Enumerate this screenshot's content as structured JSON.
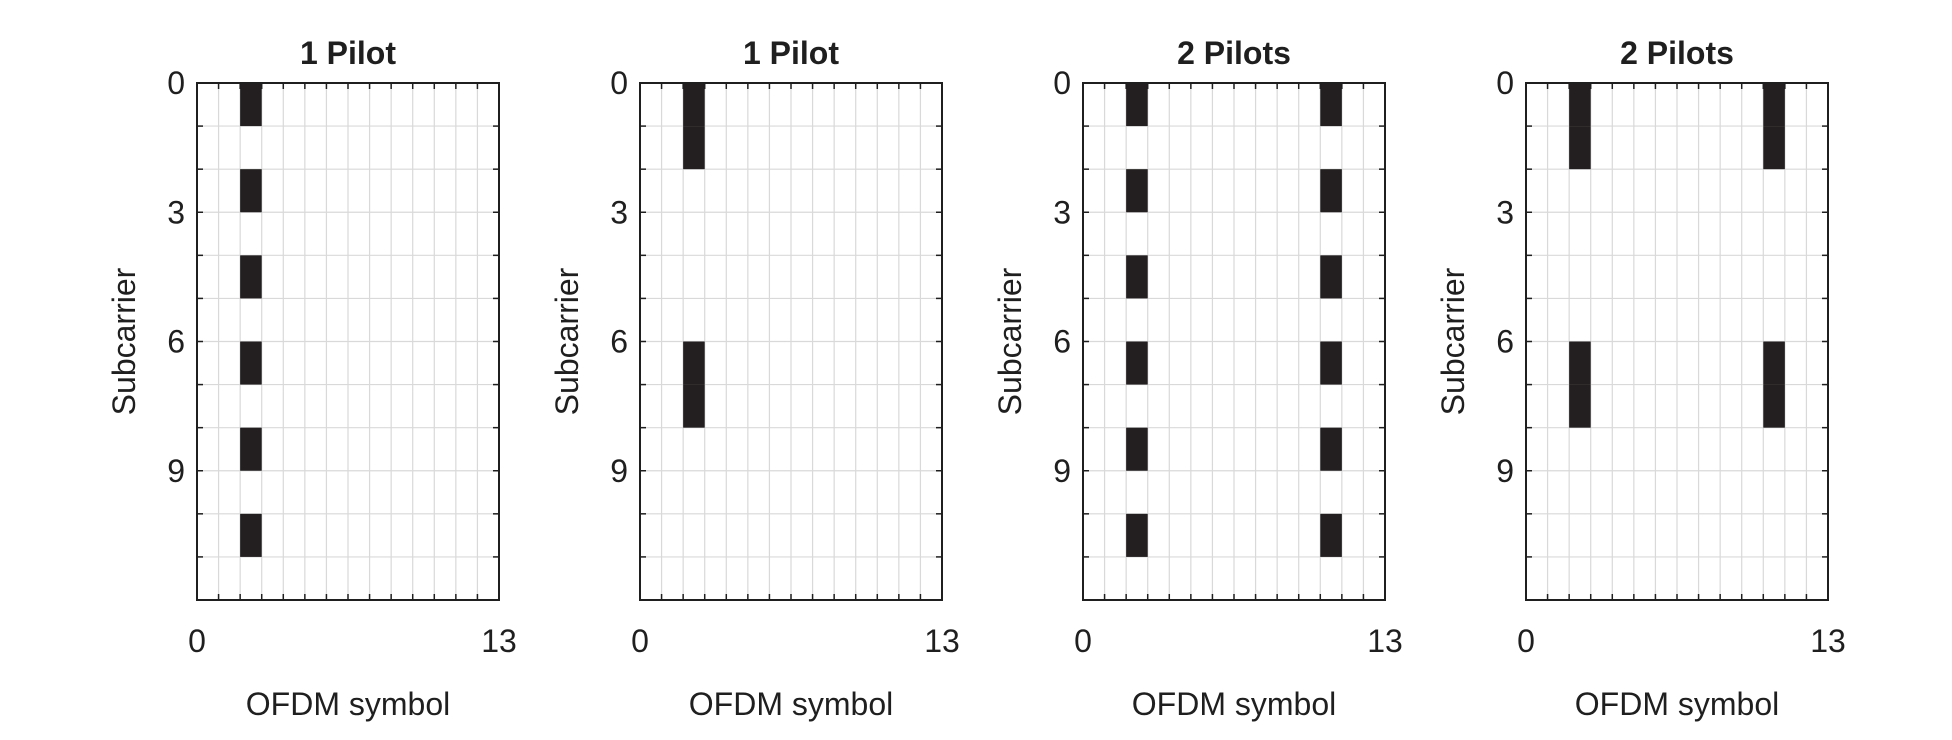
{
  "colors": {
    "pilot": "#231f20",
    "grid": "#d9d9d9",
    "axis": "#1f1f1f",
    "background": "#ffffff"
  },
  "chart_data": [
    {
      "type": "heatmap",
      "title": "1 Pilot",
      "xlabel": "OFDM symbol",
      "ylabel": "Subcarrier",
      "xlim": [
        0,
        14
      ],
      "ylim": [
        0,
        12
      ],
      "y_reversed": true,
      "x_tick_labels": [
        "0",
        "13"
      ],
      "y_tick_labels": [
        "0",
        "3",
        "6",
        "9"
      ],
      "grid": true,
      "pilots": [
        {
          "symbol": 2,
          "subcarriers": [
            0,
            2,
            4,
            6,
            8,
            10
          ]
        }
      ]
    },
    {
      "type": "heatmap",
      "title": "1 Pilot",
      "xlabel": "OFDM symbol",
      "ylabel": "Subcarrier",
      "xlim": [
        0,
        14
      ],
      "ylim": [
        0,
        12
      ],
      "y_reversed": true,
      "x_tick_labels": [
        "0",
        "13"
      ],
      "y_tick_labels": [
        "0",
        "3",
        "6",
        "9"
      ],
      "grid": true,
      "pilots": [
        {
          "symbol": 2,
          "subcarriers": [
            0,
            1,
            6,
            7
          ]
        }
      ]
    },
    {
      "type": "heatmap",
      "title": "2 Pilots",
      "xlabel": "OFDM symbol",
      "ylabel": "Subcarrier",
      "xlim": [
        0,
        14
      ],
      "ylim": [
        0,
        12
      ],
      "y_reversed": true,
      "x_tick_labels": [
        "0",
        "13"
      ],
      "y_tick_labels": [
        "0",
        "3",
        "6",
        "9"
      ],
      "grid": true,
      "pilots": [
        {
          "symbol": 2,
          "subcarriers": [
            0,
            2,
            4,
            6,
            8,
            10
          ]
        },
        {
          "symbol": 11,
          "subcarriers": [
            0,
            2,
            4,
            6,
            8,
            10
          ]
        }
      ]
    },
    {
      "type": "heatmap",
      "title": "2 Pilots",
      "xlabel": "OFDM symbol",
      "ylabel": "Subcarrier",
      "xlim": [
        0,
        14
      ],
      "ylim": [
        0,
        12
      ],
      "y_reversed": true,
      "x_tick_labels": [
        "0",
        "13"
      ],
      "y_tick_labels": [
        "0",
        "3",
        "6",
        "9"
      ],
      "grid": true,
      "pilots": [
        {
          "symbol": 2,
          "subcarriers": [
            0,
            1,
            6,
            7
          ]
        },
        {
          "symbol": 11,
          "subcarriers": [
            0,
            1,
            6,
            7
          ]
        }
      ]
    }
  ]
}
